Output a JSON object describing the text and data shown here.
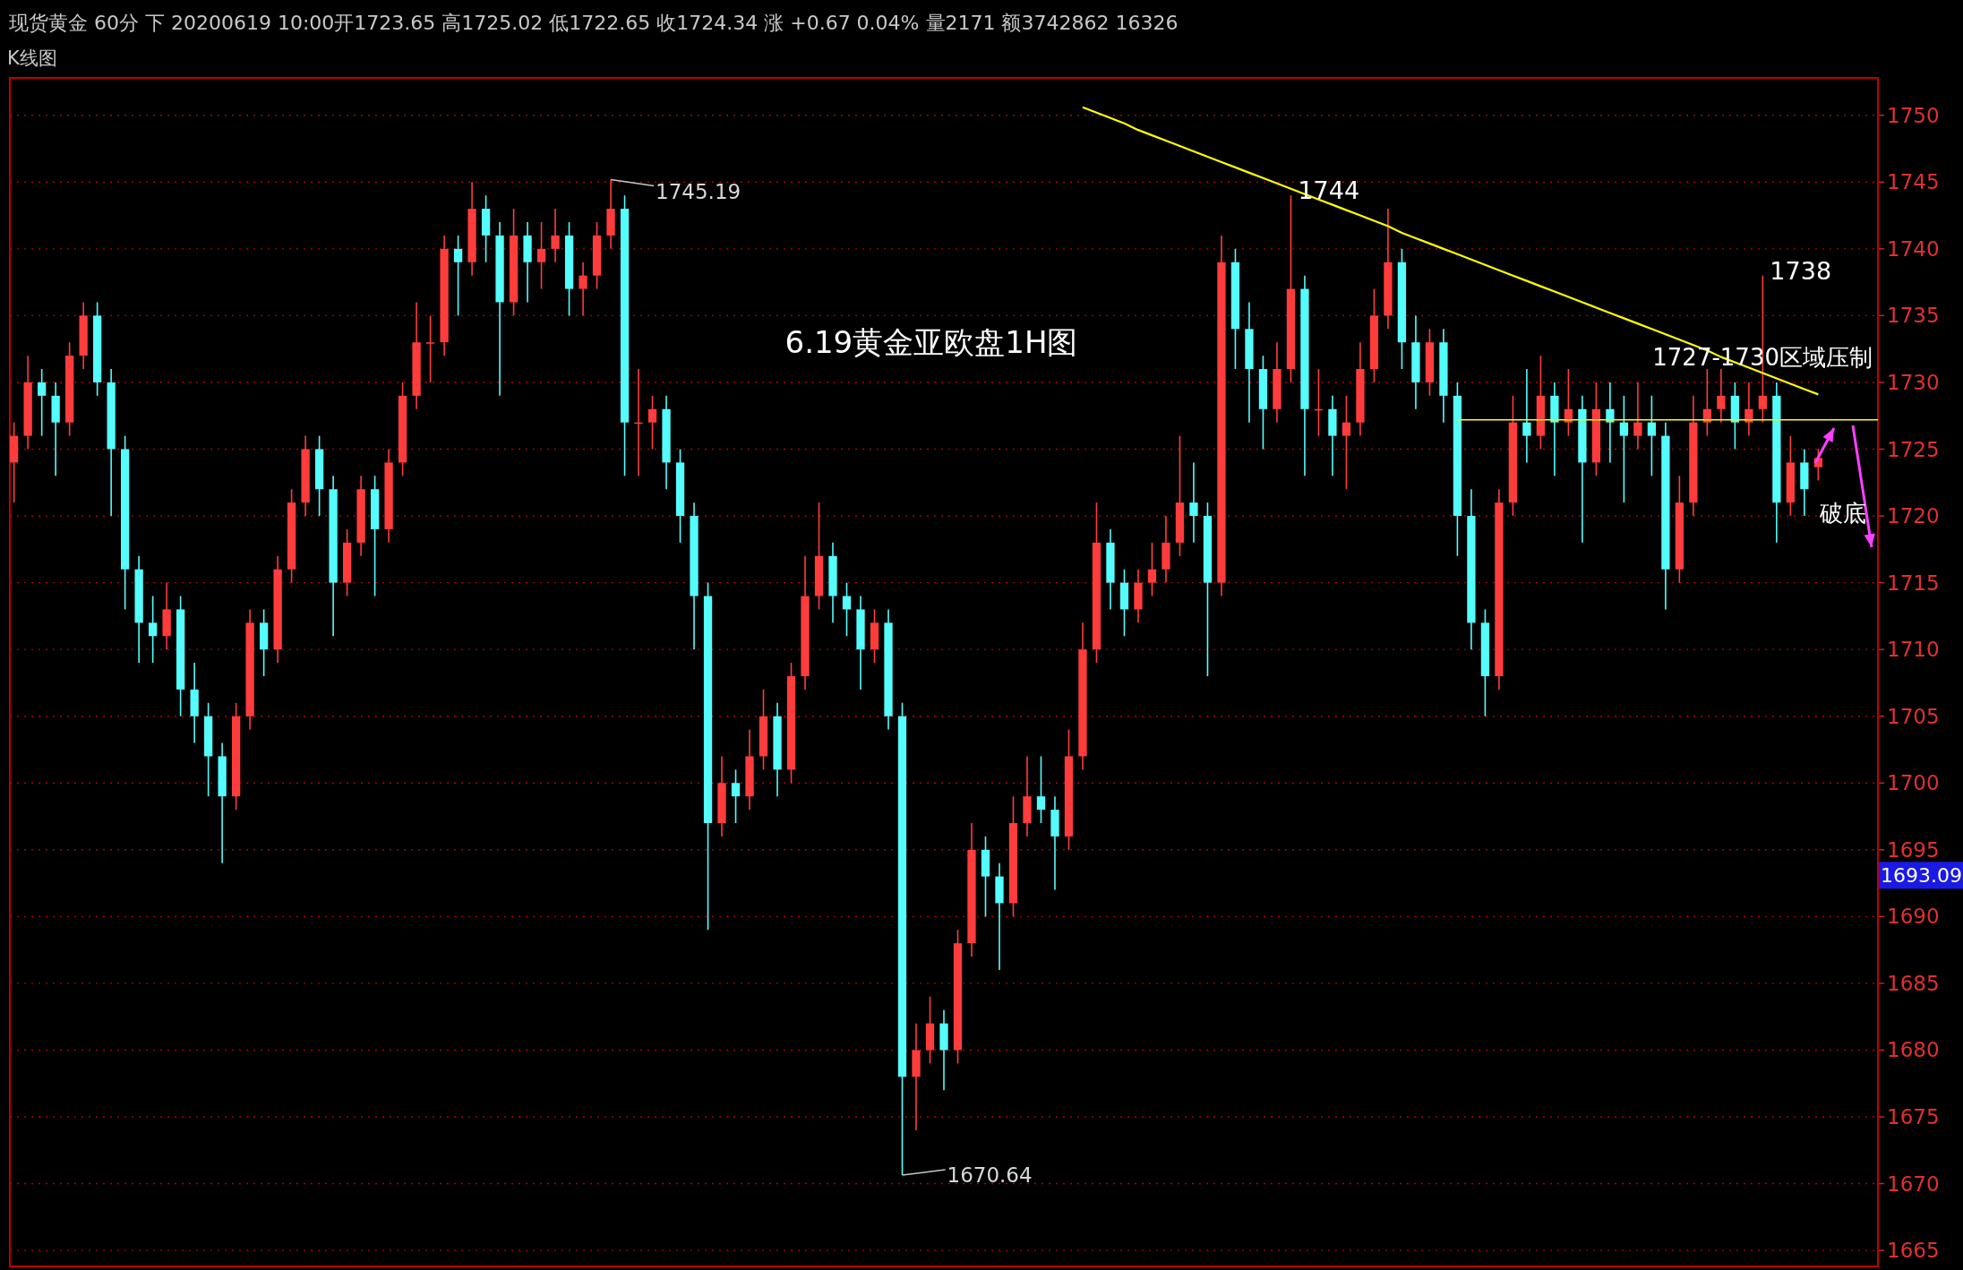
{
  "chart_data": {
    "type": "candlestick",
    "title": "6.19黄金亚欧盘1H图",
    "subtitle": "现货黄金 60分 下 20200619 10:00开1723.65 高1725.02 低1722.65 收1724.34 涨 +0.67 0.04% 量2171 额3742862 16326",
    "categories": [
      null,
      null,
      null,
      null,
      null,
      null,
      null,
      null,
      null,
      null,
      null,
      null,
      null,
      null,
      null,
      null,
      null,
      null,
      null,
      null,
      null,
      null,
      null,
      null,
      null,
      null,
      null,
      null,
      null,
      null,
      null,
      null,
      null,
      null,
      null,
      null,
      null,
      null,
      null,
      null,
      null,
      null,
      null,
      null,
      null,
      null,
      null,
      null,
      null,
      null,
      null,
      null,
      null,
      null,
      null,
      null,
      null,
      null,
      null,
      null,
      null,
      null,
      null,
      null,
      null,
      null,
      null,
      null,
      null,
      null,
      null,
      null,
      null,
      null,
      null,
      null,
      null,
      null,
      null,
      null,
      null,
      null,
      null,
      null,
      null,
      null,
      null,
      null,
      null,
      null,
      null,
      null,
      null,
      null,
      null,
      null,
      null,
      null,
      null,
      null,
      null,
      null,
      null,
      null,
      null,
      null,
      null,
      null,
      null,
      null,
      null,
      null,
      null,
      null,
      null,
      null,
      null,
      null,
      null,
      null,
      null,
      null,
      null,
      null,
      null,
      null,
      null,
      null,
      null,
      null,
      null
    ],
    "ohlc": [
      [
        1724,
        1727,
        1721,
        1726
      ],
      [
        1726,
        1732,
        1725,
        1730
      ],
      [
        1730,
        1731,
        1726,
        1729
      ],
      [
        1729,
        1730,
        1723,
        1727
      ],
      [
        1727,
        1733,
        1726,
        1732
      ],
      [
        1732,
        1736,
        1731,
        1735
      ],
      [
        1735,
        1736,
        1729,
        1730
      ],
      [
        1730,
        1731,
        1720,
        1725
      ],
      [
        1725,
        1726,
        1713,
        1716
      ],
      [
        1716,
        1717,
        1709,
        1712
      ],
      [
        1712,
        1714,
        1709,
        1711
      ],
      [
        1711,
        1715,
        1710,
        1713
      ],
      [
        1713,
        1714,
        1705,
        1707
      ],
      [
        1707,
        1709,
        1703,
        1705
      ],
      [
        1705,
        1706,
        1699,
        1702
      ],
      [
        1702,
        1703,
        1694,
        1699
      ],
      [
        1699,
        1706,
        1698,
        1705
      ],
      [
        1705,
        1713,
        1704,
        1712
      ],
      [
        1712,
        1713,
        1708,
        1710
      ],
      [
        1710,
        1717,
        1709,
        1716
      ],
      [
        1716,
        1722,
        1715,
        1721
      ],
      [
        1721,
        1726,
        1720,
        1725
      ],
      [
        1725,
        1726,
        1720,
        1722
      ],
      [
        1722,
        1723,
        1711,
        1715
      ],
      [
        1715,
        1719,
        1714,
        1718
      ],
      [
        1718,
        1723,
        1717,
        1722
      ],
      [
        1722,
        1723,
        1714,
        1719
      ],
      [
        1719,
        1725,
        1718,
        1724
      ],
      [
        1724,
        1730,
        1723,
        1729
      ],
      [
        1729,
        1736,
        1728,
        1733
      ],
      [
        1733,
        1735,
        1730,
        1733
      ],
      [
        1733,
        1741,
        1732,
        1740
      ],
      [
        1740,
        1741,
        1735,
        1739
      ],
      [
        1739,
        1745,
        1738,
        1743
      ],
      [
        1743,
        1744,
        1739,
        1741
      ],
      [
        1741,
        1742,
        1729,
        1736
      ],
      [
        1736,
        1743,
        1735,
        1741
      ],
      [
        1741,
        1742,
        1736,
        1739
      ],
      [
        1739,
        1742,
        1737,
        1740
      ],
      [
        1740,
        1743,
        1739,
        1741
      ],
      [
        1741,
        1742,
        1735,
        1737
      ],
      [
        1737,
        1739,
        1735,
        1738
      ],
      [
        1738,
        1742,
        1737,
        1741
      ],
      [
        1741,
        1745.19,
        1740,
        1743
      ],
      [
        1743,
        1744,
        1723,
        1727
      ],
      [
        1727,
        1731,
        1723,
        1727
      ],
      [
        1727,
        1729,
        1725,
        1728
      ],
      [
        1728,
        1729,
        1722,
        1724
      ],
      [
        1724,
        1725,
        1718,
        1720
      ],
      [
        1720,
        1721,
        1710,
        1714
      ],
      [
        1714,
        1715,
        1689,
        1697
      ],
      [
        1697,
        1702,
        1696,
        1700
      ],
      [
        1700,
        1701,
        1697,
        1699
      ],
      [
        1699,
        1704,
        1698,
        1702
      ],
      [
        1702,
        1707,
        1701,
        1705
      ],
      [
        1705,
        1706,
        1699,
        1701
      ],
      [
        1701,
        1709,
        1700,
        1708
      ],
      [
        1708,
        1717,
        1707,
        1714
      ],
      [
        1714,
        1721,
        1713,
        1717
      ],
      [
        1717,
        1718,
        1712,
        1714
      ],
      [
        1714,
        1715,
        1711,
        1713
      ],
      [
        1713,
        1714,
        1707,
        1710
      ],
      [
        1710,
        1713,
        1709,
        1712
      ],
      [
        1712,
        1713,
        1704,
        1705
      ],
      [
        1705,
        1706,
        1670.64,
        1678
      ],
      [
        1678,
        1682,
        1674,
        1680
      ],
      [
        1680,
        1684,
        1679,
        1682
      ],
      [
        1682,
        1683,
        1677,
        1680
      ],
      [
        1680,
        1689,
        1679,
        1688
      ],
      [
        1688,
        1697,
        1687,
        1695
      ],
      [
        1695,
        1696,
        1690,
        1693
      ],
      [
        1693,
        1694,
        1686,
        1691
      ],
      [
        1691,
        1699,
        1690,
        1697
      ],
      [
        1697,
        1702,
        1696,
        1699
      ],
      [
        1699,
        1702,
        1697,
        1698
      ],
      [
        1698,
        1699,
        1692,
        1696
      ],
      [
        1696,
        1704,
        1695,
        1702
      ],
      [
        1702,
        1712,
        1701,
        1710
      ],
      [
        1710,
        1721,
        1709,
        1718
      ],
      [
        1718,
        1719,
        1713,
        1715
      ],
      [
        1715,
        1716,
        1711,
        1713
      ],
      [
        1713,
        1716,
        1712,
        1715
      ],
      [
        1715,
        1718,
        1714,
        1716
      ],
      [
        1716,
        1720,
        1715,
        1718
      ],
      [
        1718,
        1726,
        1717,
        1721
      ],
      [
        1721,
        1724,
        1718,
        1720
      ],
      [
        1720,
        1721,
        1708,
        1715
      ],
      [
        1715,
        1741,
        1714,
        1739
      ],
      [
        1739,
        1740,
        1731,
        1734
      ],
      [
        1734,
        1736,
        1727,
        1731
      ],
      [
        1731,
        1732,
        1725,
        1728
      ],
      [
        1728,
        1733,
        1727,
        1731
      ],
      [
        1731,
        1744,
        1730,
        1737
      ],
      [
        1737,
        1738,
        1723,
        1728
      ],
      [
        1728,
        1731,
        1726,
        1728
      ],
      [
        1728,
        1729,
        1723,
        1726
      ],
      [
        1726,
        1729,
        1722,
        1727
      ],
      [
        1727,
        1733,
        1726,
        1731
      ],
      [
        1731,
        1737,
        1730,
        1735
      ],
      [
        1735,
        1743,
        1734,
        1739
      ],
      [
        1739,
        1740,
        1731,
        1733
      ],
      [
        1733,
        1735,
        1728,
        1730
      ],
      [
        1730,
        1734,
        1729,
        1733
      ],
      [
        1733,
        1734,
        1727,
        1729
      ],
      [
        1729,
        1730,
        1717,
        1720
      ],
      [
        1720,
        1722,
        1710,
        1712
      ],
      [
        1712,
        1713,
        1705,
        1708
      ],
      [
        1708,
        1722,
        1707,
        1721
      ],
      [
        1721,
        1729,
        1720,
        1727
      ],
      [
        1727,
        1731,
        1724,
        1726
      ],
      [
        1726,
        1732,
        1725,
        1729
      ],
      [
        1729,
        1730,
        1723,
        1727
      ],
      [
        1727,
        1731,
        1726,
        1728
      ],
      [
        1728,
        1729,
        1718,
        1724
      ],
      [
        1724,
        1730,
        1723,
        1728
      ],
      [
        1728,
        1730,
        1724,
        1727
      ],
      [
        1727,
        1729,
        1721,
        1726
      ],
      [
        1726,
        1730,
        1725,
        1727
      ],
      [
        1727,
        1729,
        1723,
        1726
      ],
      [
        1726,
        1727,
        1713,
        1716
      ],
      [
        1716,
        1723,
        1715,
        1721
      ],
      [
        1721,
        1729,
        1720,
        1727
      ],
      [
        1727,
        1731,
        1726,
        1728
      ],
      [
        1728,
        1731,
        1727,
        1729
      ],
      [
        1729,
        1730,
        1725,
        1727
      ],
      [
        1727,
        1730,
        1726,
        1728
      ],
      [
        1728,
        1738,
        1727,
        1729
      ],
      [
        1729,
        1730,
        1718,
        1721
      ],
      [
        1721,
        1726,
        1720,
        1724
      ],
      [
        1724,
        1725,
        1720,
        1722
      ],
      [
        1723.65,
        1725.02,
        1722.65,
        1724.34
      ]
    ],
    "annotations": [
      "K线图",
      "1693.09",
      "1745.19",
      "1670.64",
      "1744",
      "1738",
      "1727-1730区域压制",
      "破底"
    ],
    "series": [
      {
        "type": "line",
        "color": "#ffff00",
        "values": [
          null,
          null,
          null,
          null,
          null,
          null,
          null,
          null,
          null,
          null,
          null,
          null,
          null,
          null,
          null,
          null,
          null,
          null,
          null,
          null,
          null,
          null,
          null,
          null,
          null,
          null,
          null,
          null,
          null,
          null,
          null,
          null,
          null,
          null,
          null,
          null,
          null,
          null,
          null,
          null,
          null,
          null,
          null,
          null,
          null,
          null,
          null,
          null,
          null,
          null,
          null,
          null,
          null,
          null,
          null,
          null,
          null,
          null,
          null,
          null,
          null,
          null,
          null,
          null,
          null,
          null,
          null,
          null,
          null,
          null,
          null,
          null,
          null,
          null,
          null,
          null,
          null,
          1750.6,
          1750.2,
          1749.8,
          1749.4,
          1748.9,
          1748.5,
          1748.1,
          1747.7,
          1747.3,
          1746.9,
          1746.5,
          1746.1,
          1745.7,
          1745.3,
          1744.9,
          1744.5,
          1744.1,
          1743.7,
          1743.3,
          1742.9,
          1742.5,
          1742.1,
          1741.7,
          1741.2,
          1740.8,
          1740.4,
          1740.0,
          1739.6,
          1739.2,
          1738.8,
          1738.4,
          1738.0,
          1737.6,
          1737.2,
          1736.8,
          1736.4,
          1736.0,
          1735.6,
          1735.2,
          1734.8,
          1734.4,
          1734.0,
          1733.6,
          1733.2,
          1732.8,
          1732.4,
          1731.9,
          1731.5,
          1731.1,
          1730.7,
          1730.3,
          1729.9,
          1729.5,
          1729.1
        ]
      }
    ],
    "ref_lines": [
      {
        "axis": "y",
        "value": 1727.2,
        "color": "#ffff00"
      }
    ],
    "ylim": [
      1663.8,
      1752.8
    ],
    "yticks": [
      1665,
      1670,
      1675,
      1680,
      1685,
      1690,
      1695,
      1700,
      1705,
      1710,
      1715,
      1720,
      1725,
      1730,
      1735,
      1740,
      1745,
      1750
    ],
    "tick_labels": "y",
    "grid": "y"
  }
}
